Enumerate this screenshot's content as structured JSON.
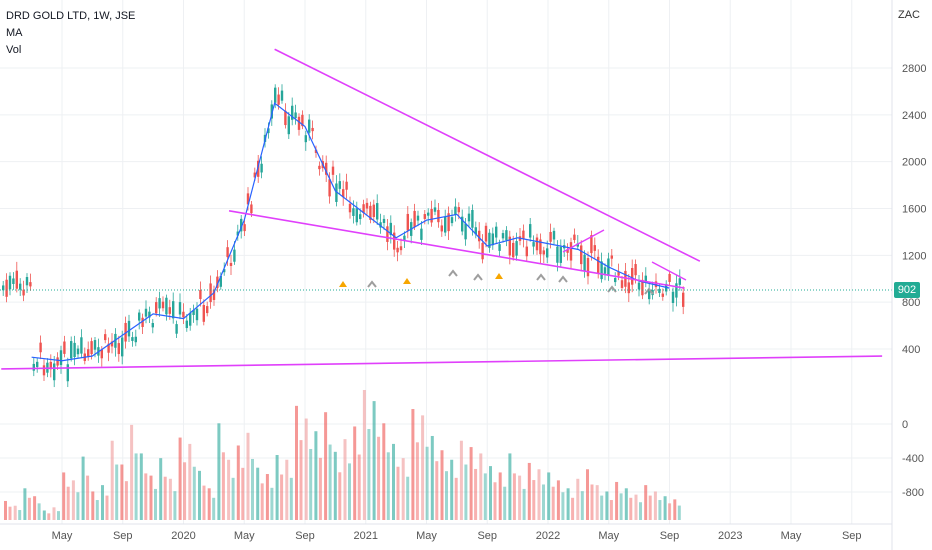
{
  "legend": {
    "symbol": "DRD GOLD LTD, 1W, JSE",
    "ma": "MA",
    "vol": "Vol"
  },
  "unit": "ZAC",
  "last_price": "902",
  "colors": {
    "up": "#26a69a",
    "down": "#ef5350",
    "ma": "#2962ff",
    "trendline": "#e040fb",
    "grid": "#eef0f3"
  },
  "chart_data": [
    {
      "type": "line",
      "title": "",
      "series": [
        {
          "name": "MA",
          "x": [
            "2019-03",
            "2019-05",
            "2019-07",
            "2019-09",
            "2019-11",
            "2020-01",
            "2020-03",
            "2020-05",
            "2020-07",
            "2020-09",
            "2020-11",
            "2021-01",
            "2021-03",
            "2021-05",
            "2021-07",
            "2021-09",
            "2021-11",
            "2022-01",
            "2022-03",
            "2022-05",
            "2022-07",
            "2022-09"
          ],
          "values": [
            330,
            300,
            340,
            520,
            700,
            660,
            880,
            1500,
            2500,
            2300,
            1750,
            1550,
            1350,
            1500,
            1550,
            1280,
            1350,
            1300,
            1250,
            1100,
            980,
            920
          ]
        }
      ],
      "trendlines": [
        {
          "name": "upper",
          "x": [
            "2020-07",
            "2022-11"
          ],
          "values": [
            2960,
            1150
          ]
        },
        {
          "name": "lower",
          "x": [
            "2020-04",
            "2022-10"
          ],
          "values": [
            1580,
            920
          ]
        },
        {
          "name": "base",
          "x": [
            "2019-01",
            "2023-11"
          ],
          "values": [
            230,
            340
          ]
        }
      ],
      "ylim": [
        -1000,
        3200
      ],
      "y_ticks": [
        "2800",
        "2400",
        "2000",
        "1600",
        "1200",
        "800",
        "400",
        "0",
        "-400",
        "-800"
      ],
      "x_ticks": [
        "May",
        "Sep",
        "2020",
        "May",
        "Sep",
        "2021",
        "May",
        "Sep",
        "2022",
        "May",
        "Sep",
        "2023",
        "May",
        "Sep"
      ],
      "grid": true
    },
    {
      "type": "bar",
      "name": "Vol",
      "values": [
        120,
        90,
        200,
        150,
        60,
        80,
        300,
        250,
        400,
        180,
        220,
        500,
        350,
        600,
        420,
        280,
        390,
        260,
        520,
        480,
        310,
        200,
        610,
        380,
        470,
        550,
        330,
        290,
        410,
        380,
        720,
        640,
        560,
        680,
        430,
        510,
        590,
        820,
        750,
        610,
        480,
        390,
        700,
        660,
        530,
        440,
        380,
        500,
        460,
        420,
        340,
        300,
        420,
        280,
        360,
        320,
        300,
        250,
        200,
        260,
        320,
        220,
        180,
        240,
        200,
        160,
        220,
        180,
        150,
        130
      ]
    }
  ]
}
